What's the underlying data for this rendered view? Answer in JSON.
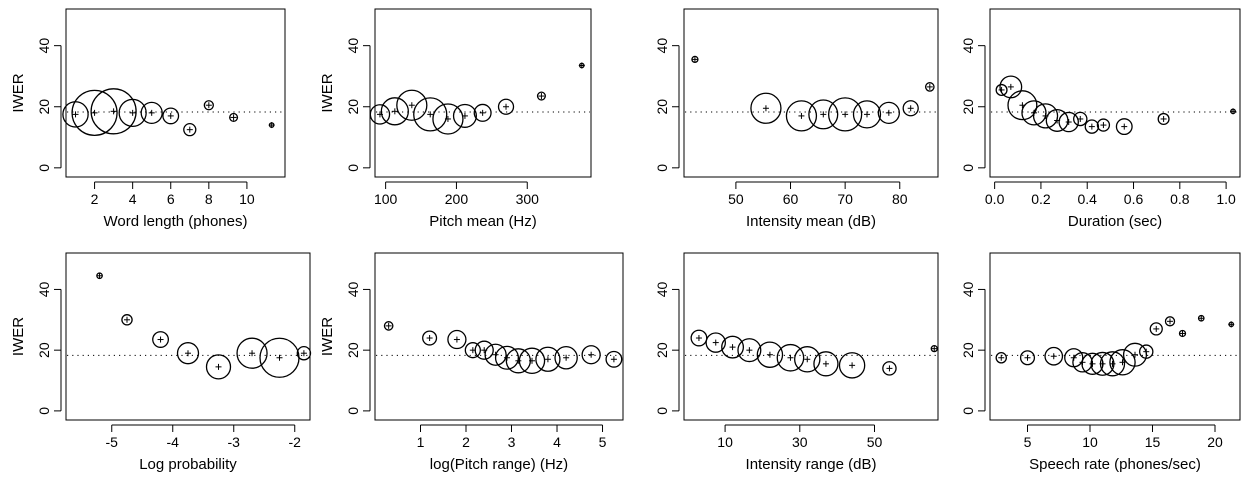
{
  "chart_data": [
    {
      "type": "scatter",
      "xlabel": "Word length (phones)",
      "ylabel": "IWER",
      "xlim": [
        0.5,
        12.0
      ],
      "ylim": [
        -3,
        52
      ],
      "xticks": [
        2,
        4,
        6,
        8,
        10
      ],
      "yticks": [
        0,
        20,
        40
      ],
      "reference_y": 18.3,
      "points": [
        {
          "x": 1.0,
          "y": 17.5,
          "size": 4.2
        },
        {
          "x": 2.0,
          "y": 18.0,
          "size": 7.5
        },
        {
          "x": 3.0,
          "y": 18.5,
          "size": 7.5
        },
        {
          "x": 4.0,
          "y": 18.0,
          "size": 4.5
        },
        {
          "x": 5.0,
          "y": 18.0,
          "size": 3.5
        },
        {
          "x": 6.0,
          "y": 17.0,
          "size": 2.6
        },
        {
          "x": 7.0,
          "y": 12.5,
          "size": 2.0
        },
        {
          "x": 8.0,
          "y": 20.5,
          "size": 1.5
        },
        {
          "x": 9.3,
          "y": 16.5,
          "size": 1.3
        },
        {
          "x": 11.3,
          "y": 14.0,
          "size": 0.6
        }
      ]
    },
    {
      "type": "scatter",
      "xlabel": "Pitch mean (Hz)",
      "ylabel": "IWER",
      "xlim": [
        85,
        390
      ],
      "ylim": [
        -3,
        52
      ],
      "xticks": [
        100,
        200,
        300
      ],
      "yticks": [
        0,
        20,
        40
      ],
      "reference_y": 18.3,
      "points": [
        {
          "x": 92,
          "y": 17.5,
          "size": 3.2
        },
        {
          "x": 113,
          "y": 18.5,
          "size": 4.5
        },
        {
          "x": 137,
          "y": 20.5,
          "size": 5.0
        },
        {
          "x": 163,
          "y": 17.5,
          "size": 5.5
        },
        {
          "x": 188,
          "y": 16.0,
          "size": 5.0
        },
        {
          "x": 212,
          "y": 17.0,
          "size": 3.8
        },
        {
          "x": 237,
          "y": 18.0,
          "size": 2.8
        },
        {
          "x": 270,
          "y": 20.0,
          "size": 2.5
        },
        {
          "x": 320,
          "y": 23.5,
          "size": 1.3
        },
        {
          "x": 377,
          "y": 33.5,
          "size": 0.6
        }
      ]
    },
    {
      "type": "scatter",
      "xlabel": "Intensity mean (dB)",
      "ylabel": "",
      "xlim": [
        40.5,
        87
      ],
      "ylim": [
        -3,
        52
      ],
      "xticks": [
        50,
        60,
        70,
        80
      ],
      "yticks": [
        0,
        20,
        40
      ],
      "reference_y": 18.3,
      "points": [
        {
          "x": 42.5,
          "y": 35.5,
          "size": 1.0
        },
        {
          "x": 55.5,
          "y": 19.5,
          "size": 5.0
        },
        {
          "x": 62,
          "y": 17.0,
          "size": 5.0
        },
        {
          "x": 66,
          "y": 17.5,
          "size": 4.8
        },
        {
          "x": 70,
          "y": 17.5,
          "size": 5.5
        },
        {
          "x": 74,
          "y": 17.5,
          "size": 4.5
        },
        {
          "x": 78,
          "y": 18.0,
          "size": 3.5
        },
        {
          "x": 82,
          "y": 19.5,
          "size": 2.5
        },
        {
          "x": 85.5,
          "y": 26.5,
          "size": 1.4
        }
      ]
    },
    {
      "type": "scatter",
      "xlabel": "Duration (sec)",
      "ylabel": "",
      "xlim": [
        -0.02,
        1.06
      ],
      "ylim": [
        -3,
        52
      ],
      "xticks": [
        0.0,
        0.2,
        0.4,
        0.6,
        0.8,
        1.0
      ],
      "yticks": [
        0,
        20,
        40
      ],
      "reference_y": 18.3,
      "points": [
        {
          "x": 0.03,
          "y": 25.5,
          "size": 1.8
        },
        {
          "x": 0.07,
          "y": 26.5,
          "size": 3.6
        },
        {
          "x": 0.12,
          "y": 20.5,
          "size": 4.8
        },
        {
          "x": 0.17,
          "y": 18.0,
          "size": 4.0
        },
        {
          "x": 0.22,
          "y": 17.0,
          "size": 4.0
        },
        {
          "x": 0.27,
          "y": 15.5,
          "size": 3.6
        },
        {
          "x": 0.32,
          "y": 15.0,
          "size": 3.2
        },
        {
          "x": 0.37,
          "y": 16.0,
          "size": 2.2
        },
        {
          "x": 0.42,
          "y": 13.5,
          "size": 2.2
        },
        {
          "x": 0.47,
          "y": 14.0,
          "size": 2.0
        },
        {
          "x": 0.56,
          "y": 13.5,
          "size": 2.6
        },
        {
          "x": 0.73,
          "y": 16.0,
          "size": 1.8
        },
        {
          "x": 1.03,
          "y": 18.5,
          "size": 0.5
        }
      ]
    },
    {
      "type": "scatter",
      "xlabel": "Log probability",
      "ylabel": "IWER",
      "xlim": [
        -5.75,
        -1.75
      ],
      "ylim": [
        -3,
        52
      ],
      "xticks": [
        -5,
        -4,
        -3,
        -2
      ],
      "yticks": [
        0,
        20,
        40
      ],
      "reference_y": 18.3,
      "points": [
        {
          "x": -5.2,
          "y": 44.5,
          "size": 0.9
        },
        {
          "x": -4.75,
          "y": 30.0,
          "size": 1.7
        },
        {
          "x": -4.2,
          "y": 23.5,
          "size": 2.6
        },
        {
          "x": -3.75,
          "y": 19.0,
          "size": 3.5
        },
        {
          "x": -3.25,
          "y": 14.5,
          "size": 4.0
        },
        {
          "x": -2.7,
          "y": 19.0,
          "size": 5.0
        },
        {
          "x": -2.25,
          "y": 17.5,
          "size": 6.5
        },
        {
          "x": -1.85,
          "y": 19.0,
          "size": 2.2
        }
      ]
    },
    {
      "type": "scatter",
      "xlabel": "log(Pitch range) (Hz)",
      "ylabel": "IWER",
      "xlim": [
        0.0,
        5.45
      ],
      "ylim": [
        -3,
        52
      ],
      "xticks": [
        1,
        2,
        3,
        4,
        5
      ],
      "yticks": [
        0,
        20,
        40
      ],
      "reference_y": 18.3,
      "points": [
        {
          "x": 0.3,
          "y": 28.0,
          "size": 1.4
        },
        {
          "x": 1.2,
          "y": 24.0,
          "size": 2.3
        },
        {
          "x": 1.8,
          "y": 23.5,
          "size": 3.0
        },
        {
          "x": 2.15,
          "y": 20.0,
          "size": 2.5
        },
        {
          "x": 2.4,
          "y": 20.0,
          "size": 3.0
        },
        {
          "x": 2.65,
          "y": 18.5,
          "size": 3.5
        },
        {
          "x": 2.9,
          "y": 17.5,
          "size": 3.8
        },
        {
          "x": 3.15,
          "y": 16.5,
          "size": 4.0
        },
        {
          "x": 3.45,
          "y": 16.5,
          "size": 4.2
        },
        {
          "x": 3.8,
          "y": 17.0,
          "size": 4.0
        },
        {
          "x": 4.2,
          "y": 17.5,
          "size": 3.7
        },
        {
          "x": 4.75,
          "y": 18.5,
          "size": 3.0
        },
        {
          "x": 5.25,
          "y": 17.0,
          "size": 2.6
        }
      ]
    },
    {
      "type": "scatter",
      "xlabel": "Intensity range (dB)",
      "ylabel": "",
      "xlim": [
        -1,
        67
      ],
      "ylim": [
        -3,
        52
      ],
      "xticks": [
        10,
        30,
        50
      ],
      "yticks": [
        0,
        20,
        40
      ],
      "reference_y": 18.3,
      "points": [
        {
          "x": 3,
          "y": 24.0,
          "size": 2.6
        },
        {
          "x": 7.5,
          "y": 22.5,
          "size": 3.2
        },
        {
          "x": 12,
          "y": 21.0,
          "size": 3.6
        },
        {
          "x": 16.5,
          "y": 20.0,
          "size": 3.8
        },
        {
          "x": 22,
          "y": 18.5,
          "size": 4.2
        },
        {
          "x": 27.5,
          "y": 17.5,
          "size": 4.4
        },
        {
          "x": 32,
          "y": 17.0,
          "size": 4.2
        },
        {
          "x": 37,
          "y": 15.5,
          "size": 4.0
        },
        {
          "x": 44,
          "y": 15.0,
          "size": 4.2
        },
        {
          "x": 54,
          "y": 14.0,
          "size": 2.2
        },
        {
          "x": 66,
          "y": 20.5,
          "size": 1.0
        }
      ]
    },
    {
      "type": "scatter",
      "xlabel": "Speech rate (phones/sec)",
      "ylabel": "",
      "xlim": [
        2,
        22
      ],
      "ylim": [
        -3,
        52
      ],
      "xticks": [
        5,
        10,
        15,
        20
      ],
      "yticks": [
        0,
        20,
        40
      ],
      "reference_y": 18.3,
      "points": [
        {
          "x": 2.9,
          "y": 17.5,
          "size": 1.7
        },
        {
          "x": 5.0,
          "y": 17.5,
          "size": 2.3
        },
        {
          "x": 7.1,
          "y": 18.0,
          "size": 2.9
        },
        {
          "x": 8.7,
          "y": 17.5,
          "size": 3.0
        },
        {
          "x": 9.4,
          "y": 16.0,
          "size": 3.2
        },
        {
          "x": 10.2,
          "y": 15.5,
          "size": 3.5
        },
        {
          "x": 11.0,
          "y": 15.5,
          "size": 3.8
        },
        {
          "x": 11.8,
          "y": 15.5,
          "size": 4.0
        },
        {
          "x": 12.6,
          "y": 16.0,
          "size": 4.2
        },
        {
          "x": 13.6,
          "y": 18.5,
          "size": 3.8
        },
        {
          "x": 14.5,
          "y": 19.5,
          "size": 2.2
        },
        {
          "x": 15.3,
          "y": 27.0,
          "size": 2.0
        },
        {
          "x": 16.4,
          "y": 29.5,
          "size": 1.5
        },
        {
          "x": 17.4,
          "y": 25.5,
          "size": 1.0
        },
        {
          "x": 18.9,
          "y": 30.5,
          "size": 0.9
        },
        {
          "x": 21.3,
          "y": 28.5,
          "size": 0.5
        }
      ]
    }
  ]
}
